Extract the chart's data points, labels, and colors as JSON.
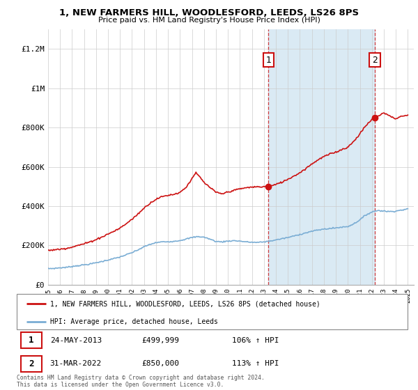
{
  "title_line1": "1, NEW FARMERS HILL, WOODLESFORD, LEEDS, LS26 8PS",
  "title_line2": "Price paid vs. HM Land Registry's House Price Index (HPI)",
  "legend_label1": "1, NEW FARMERS HILL, WOODLESFORD, LEEDS, LS26 8PS (detached house)",
  "legend_label2": "HPI: Average price, detached house, Leeds",
  "annotation1": {
    "num": "1",
    "date": "24-MAY-2013",
    "price": "£499,999",
    "pct": "106% ↑ HPI"
  },
  "annotation2": {
    "num": "2",
    "date": "31-MAR-2022",
    "price": "£850,000",
    "pct": "113% ↑ HPI"
  },
  "copyright": "Contains HM Land Registry data © Crown copyright and database right 2024.\nThis data is licensed under the Open Government Licence v3.0.",
  "hpi_color": "#7aadd4",
  "hpi_shade_color": "#daeaf4",
  "price_color": "#cc1111",
  "ylim_min": 0,
  "ylim_max": 1300000,
  "yticks": [
    0,
    200000,
    400000,
    600000,
    800000,
    1000000,
    1200000
  ],
  "ytick_labels": [
    "£0",
    "£200K",
    "£400K",
    "£600K",
    "£800K",
    "£1M",
    "£1.2M"
  ],
  "sale1_x": 2013.38,
  "sale1_price": 499999,
  "sale2_x": 2022.25,
  "sale2_price": 850000,
  "xmin": 1995.0,
  "xmax": 2025.5
}
